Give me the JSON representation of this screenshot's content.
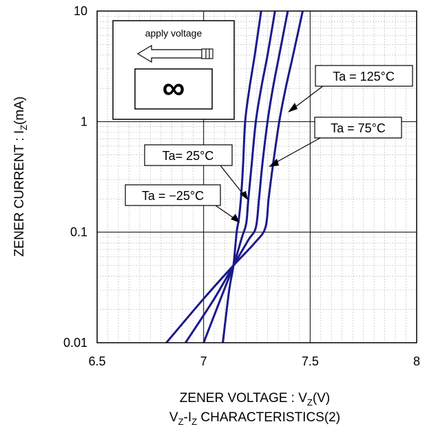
{
  "chart_data": {
    "type": "line",
    "title": "",
    "caption": {
      "main": "V",
      "sub": "Z",
      "mid": "-I",
      "sub2": "Z",
      "rest": " CHARACTERISTICS(2)"
    },
    "xlabel": {
      "main": "ZENER VOLTAGE : V",
      "sub": "Z",
      "rest": "(V)"
    },
    "ylabel": {
      "main": "ZENER CURRENT : I",
      "sub": "Z",
      "rest": "(mA)"
    },
    "x_scale": "linear",
    "y_scale": "log",
    "xlim": [
      6.5,
      8
    ],
    "ylim": [
      0.01,
      10
    ],
    "x_ticks": [
      6.5,
      7,
      7.5,
      8
    ],
    "x_tick_labels": [
      "6.5",
      "7",
      "7.5",
      "8"
    ],
    "y_ticks": [
      0.01,
      0.1,
      1,
      10
    ],
    "y_tick_labels": [
      "0.01",
      "0.1",
      "1",
      "10"
    ],
    "grid": "major solid, minor dashed",
    "line_color": "#1a1a8c",
    "series": [
      {
        "name": "Ta = −25°C",
        "points": [
          [
            7.09,
            0.01
          ],
          [
            7.12,
            0.03
          ],
          [
            7.14,
            0.05
          ],
          [
            7.155,
            0.1
          ],
          [
            7.165,
            0.13
          ],
          [
            7.175,
            0.2
          ],
          [
            7.185,
            0.4
          ],
          [
            7.195,
            1
          ],
          [
            7.215,
            2
          ],
          [
            7.24,
            4
          ],
          [
            7.27,
            10
          ]
        ]
      },
      {
        "name": "Ta= 25°C",
        "points": [
          [
            7.0,
            0.01
          ],
          [
            7.08,
            0.025
          ],
          [
            7.14,
            0.05
          ],
          [
            7.18,
            0.09
          ],
          [
            7.2,
            0.12
          ],
          [
            7.21,
            0.2
          ],
          [
            7.225,
            0.4
          ],
          [
            7.245,
            1
          ],
          [
            7.27,
            2
          ],
          [
            7.3,
            4
          ],
          [
            7.335,
            10
          ]
        ]
      },
      {
        "name": "Ta = 75°C",
        "points": [
          [
            6.915,
            0.01
          ],
          [
            7.05,
            0.025
          ],
          [
            7.14,
            0.05
          ],
          [
            7.21,
            0.085
          ],
          [
            7.245,
            0.11
          ],
          [
            7.26,
            0.2
          ],
          [
            7.275,
            0.4
          ],
          [
            7.3,
            1
          ],
          [
            7.325,
            2
          ],
          [
            7.355,
            4
          ],
          [
            7.395,
            10
          ]
        ]
      },
      {
        "name": "Ta = 125°C",
        "points": [
          [
            6.825,
            0.01
          ],
          [
            7.0,
            0.025
          ],
          [
            7.14,
            0.05
          ],
          [
            7.24,
            0.08
          ],
          [
            7.29,
            0.11
          ],
          [
            7.305,
            0.2
          ],
          [
            7.325,
            0.4
          ],
          [
            7.355,
            1
          ],
          [
            7.385,
            2
          ],
          [
            7.42,
            4
          ],
          [
            7.465,
            10
          ]
        ]
      }
    ],
    "annotations": [
      {
        "text": "Ta = 125°C",
        "target": [
          7.41,
          1.0
        ]
      },
      {
        "text": "Ta = 75°C",
        "target": [
          7.31,
          0.5
        ]
      },
      {
        "text": "Ta= 25°C",
        "target": [
          7.205,
          0.27
        ]
      },
      {
        "text": "Ta = −25°C",
        "target": [
          7.162,
          0.12
        ]
      }
    ],
    "inset": {
      "label": "apply voltage",
      "symbol": "∞"
    }
  }
}
